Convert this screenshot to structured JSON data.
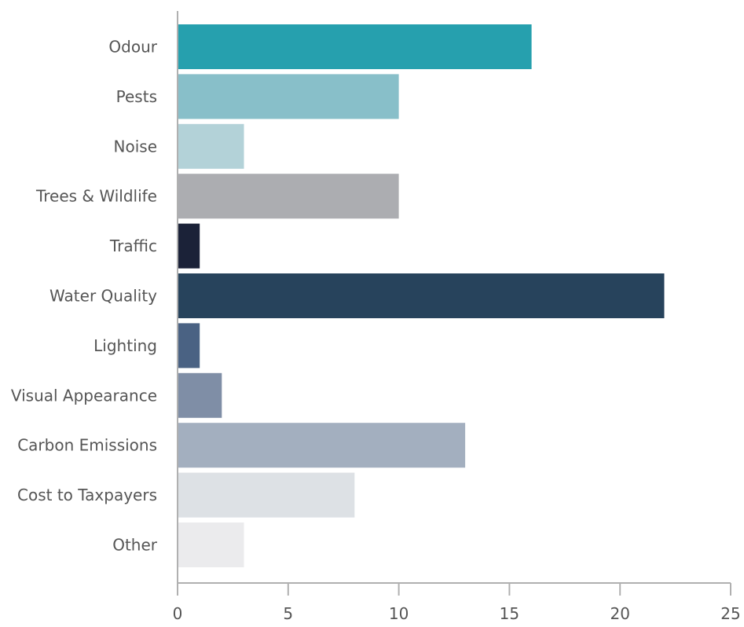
{
  "chart_data": {
    "type": "bar",
    "orientation": "horizontal",
    "title": "",
    "xlabel": "",
    "ylabel": "",
    "categories": [
      "Odour",
      "Pests",
      "Noise",
      "Trees & Wildlife",
      "Traffic",
      "Water Quality",
      "Lighting",
      "Visual Appearance",
      "Carbon Emissions",
      "Cost to Taxpayers",
      "Other"
    ],
    "values": [
      16,
      10,
      3,
      10,
      1,
      22,
      1,
      2,
      13,
      8,
      3
    ],
    "bar_colors": [
      "#26a0ae",
      "#88bfc9",
      "#b3d2d8",
      "#acadb1",
      "#1b2238",
      "#27435c",
      "#4a6283",
      "#7f8ea6",
      "#a3afbf",
      "#dde1e5",
      "#ebebed"
    ],
    "xlim": [
      0,
      25
    ],
    "xticks": [
      0,
      5,
      10,
      15,
      20,
      25
    ],
    "grid": false,
    "legend": "none"
  }
}
